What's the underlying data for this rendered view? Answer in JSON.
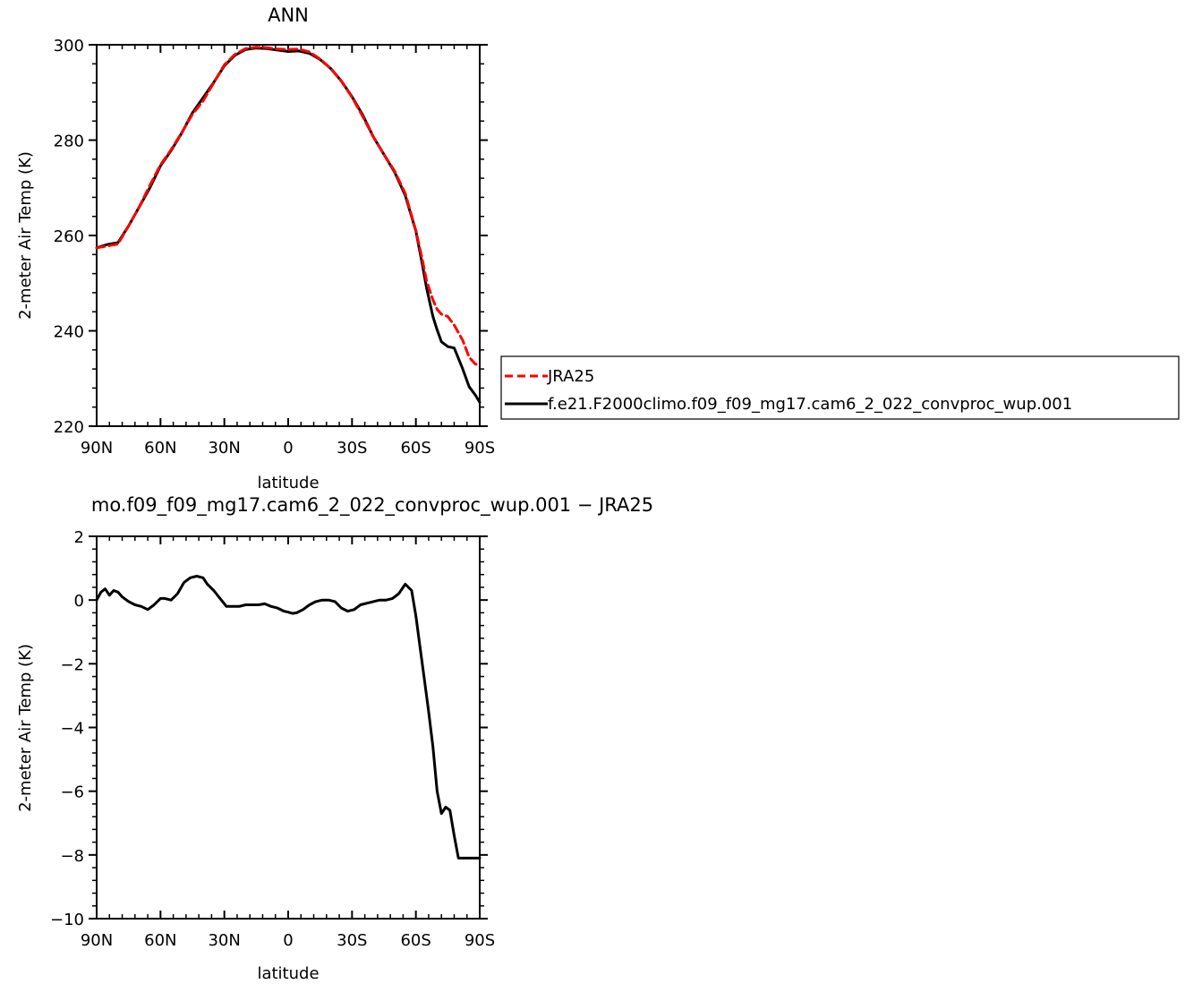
{
  "chart_data": [
    {
      "type": "line",
      "title": "ANN",
      "xlabel": "latitude",
      "ylabel": "2-meter Air Temp (K)",
      "xlim": [
        -90,
        90
      ],
      "ylim": [
        220,
        300
      ],
      "xticks": [
        -90,
        -60,
        -30,
        0,
        30,
        60,
        90
      ],
      "xtick_labels": [
        "90N",
        "60N",
        "30N",
        "0",
        "30S",
        "60S",
        "90S"
      ],
      "yticks": [
        220,
        240,
        260,
        280,
        300
      ],
      "ytick_labels": [
        "220",
        "240",
        "260",
        "280",
        "300"
      ],
      "legend_position": "right",
      "series": [
        {
          "name": "JRA25",
          "color": "#ff0000",
          "dash": "dashed",
          "x": [
            -90,
            -85,
            -80,
            -75,
            -70,
            -65,
            -60,
            -55,
            -50,
            -45,
            -40,
            -35,
            -30,
            -25,
            -20,
            -15,
            -10,
            -5,
            0,
            5,
            10,
            15,
            20,
            25,
            30,
            35,
            40,
            45,
            50,
            55,
            60,
            63,
            65,
            68,
            70,
            72,
            75,
            78,
            82,
            85,
            88,
            90
          ],
          "y": [
            257.4,
            257.8,
            258.2,
            262,
            266,
            270.5,
            274.8,
            278,
            281.6,
            285.4,
            288.2,
            292,
            295.8,
            298,
            299.2,
            299.5,
            299.4,
            299.1,
            299,
            299.1,
            298.5,
            297,
            295,
            292.4,
            289,
            285,
            280.7,
            277,
            273.5,
            268.8,
            261,
            255,
            250.5,
            246.5,
            244.5,
            243.5,
            243,
            241.2,
            238,
            234.5,
            233,
            233
          ]
        },
        {
          "name": "f.e21.F2000climo.f09_f09_mg17.cam6_2_022_convproc_wup.001",
          "color": "#000000",
          "dash": "solid",
          "x": [
            -90,
            -85,
            -80,
            -75,
            -70,
            -65,
            -60,
            -55,
            -50,
            -45,
            -40,
            -35,
            -30,
            -25,
            -20,
            -15,
            -10,
            -5,
            0,
            5,
            10,
            15,
            20,
            25,
            30,
            35,
            40,
            45,
            50,
            55,
            60,
            63,
            65,
            68,
            70,
            72,
            75,
            78,
            82,
            85,
            88,
            90
          ],
          "y": [
            257.4,
            258.1,
            258.5,
            262,
            266,
            270,
            274.6,
            277.8,
            281.5,
            285.7,
            288.9,
            292.1,
            295.6,
            297.8,
            299,
            299.3,
            299.2,
            298.9,
            298.6,
            298.7,
            298.2,
            296.9,
            295,
            292.4,
            289.1,
            285.3,
            280.7,
            277,
            273.3,
            268.4,
            260.9,
            254,
            249,
            243,
            240.2,
            237.7,
            236.7,
            236.4,
            232,
            228.3,
            226.5,
            225
          ]
        }
      ]
    },
    {
      "type": "line",
      "title": "mo.f09_f09_mg17.cam6_2_022_convproc_wup.001 − JRA25",
      "xlabel": "latitude",
      "ylabel": "2-meter Air Temp (K)",
      "xlim": [
        -90,
        90
      ],
      "ylim": [
        -10,
        2
      ],
      "xticks": [
        -90,
        -60,
        -30,
        0,
        30,
        60,
        90
      ],
      "xtick_labels": [
        "90N",
        "60N",
        "30N",
        "0",
        "30S",
        "60S",
        "90S"
      ],
      "yticks": [
        -10,
        -8,
        -6,
        -4,
        -2,
        0,
        2
      ],
      "ytick_labels": [
        "−10",
        "−8",
        "−6",
        "−4",
        "−2",
        "0",
        "2"
      ],
      "series": [
        {
          "color": "#000000",
          "dash": "solid",
          "x": [
            -90,
            -88,
            -86,
            -84,
            -82,
            -80,
            -78,
            -75,
            -72,
            -69,
            -66,
            -63,
            -60,
            -58,
            -55,
            -52,
            -49,
            -46,
            -43,
            -40,
            -38,
            -35,
            -32,
            -29,
            -26,
            -23,
            -20,
            -17,
            -14,
            -11,
            -8,
            -5,
            -2,
            0,
            2,
            4,
            7,
            10,
            13,
            16,
            19,
            22,
            25,
            28,
            31,
            34,
            37,
            40,
            43,
            46,
            49,
            52,
            55,
            58,
            60,
            62,
            64,
            66,
            68,
            70,
            72,
            74,
            76,
            78,
            80,
            82,
            84,
            86,
            88,
            90
          ],
          "y": [
            0,
            0.25,
            0.35,
            0.15,
            0.3,
            0.25,
            0.1,
            -0.05,
            -0.15,
            -0.2,
            -0.3,
            -0.15,
            0.05,
            0.05,
            0.0,
            0.2,
            0.55,
            0.7,
            0.75,
            0.7,
            0.5,
            0.3,
            0.05,
            -0.2,
            -0.2,
            -0.2,
            -0.15,
            -0.15,
            -0.15,
            -0.12,
            -0.2,
            -0.25,
            -0.35,
            -0.38,
            -0.42,
            -0.4,
            -0.3,
            -0.15,
            -0.05,
            0.0,
            0.0,
            -0.05,
            -0.25,
            -0.35,
            -0.3,
            -0.15,
            -0.1,
            -0.05,
            0.0,
            0.0,
            0.05,
            0.2,
            0.5,
            0.3,
            -0.5,
            -1.5,
            -2.5,
            -3.5,
            -4.6,
            -6.0,
            -6.7,
            -6.5,
            -6.6,
            -7.4,
            -8.1,
            -8.1,
            -8.1,
            -8.1,
            -8.1,
            -8.1
          ]
        }
      ]
    }
  ]
}
